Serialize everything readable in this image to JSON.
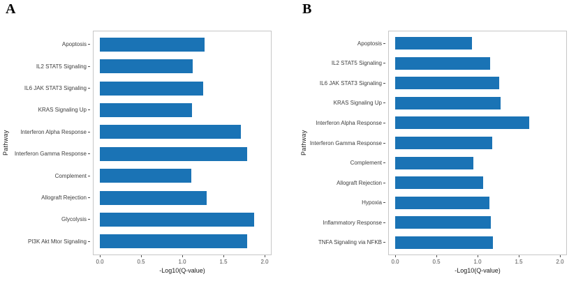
{
  "figure_title": "",
  "colors": {
    "bar": "#1a73b5",
    "panel_border": "#c6c6c6",
    "tick_text": "#4d4d4d",
    "category_text": "#3d3d3d",
    "axis_title_text": "#1a1a1a",
    "background": "#ffffff"
  },
  "chart_data": [
    {
      "type": "bar",
      "panel_label": "A",
      "orientation": "horizontal",
      "title": "",
      "xlabel": "-Log10(Q-value)",
      "ylabel": "Pathway",
      "xlim": [
        0,
        2.0
      ],
      "x_ticks": [
        0.0,
        0.5,
        1.0,
        1.5,
        2.0
      ],
      "x_tick_labels": [
        "0.0",
        "0.5",
        "1.0",
        "1.5",
        "2.0"
      ],
      "grid": false,
      "legend": "none",
      "categories": [
        "Apoptosis",
        "IL2 STAT5 Signaling",
        "IL6 JAK STAT3 Signaling",
        "KRAS Signaling Up",
        "Interferon Alpha Response",
        "Interferon Gamma Response",
        "Complement",
        "Allograft Rejection",
        "Glycolysis",
        "PI3K Akt Mtor Signaling"
      ],
      "values": [
        1.27,
        1.13,
        1.25,
        1.12,
        1.71,
        1.79,
        1.11,
        1.3,
        1.87,
        1.79
      ]
    },
    {
      "type": "bar",
      "panel_label": "B",
      "orientation": "horizontal",
      "title": "",
      "xlabel": "-Log10(Q-value)",
      "ylabel": "Pathway",
      "xlim": [
        0,
        2.0
      ],
      "x_ticks": [
        0.0,
        0.5,
        1.0,
        1.5,
        2.0
      ],
      "x_tick_labels": [
        "0.0",
        "0.5",
        "1.0",
        "1.5",
        "2.0"
      ],
      "grid": false,
      "legend": "none",
      "categories": [
        "Apoptosis",
        "IL2 STAT5 Signaling",
        "IL6 JAK STAT3 Signaling",
        "KRAS Signaling Up",
        "Interferon Alpha Response",
        "Interferon Gamma Response",
        "Complement",
        "Allograft Rejection",
        "Hypoxia",
        "Inflammatory Response",
        "TNFA Signaling via NFKB"
      ],
      "values": [
        0.93,
        1.15,
        1.26,
        1.28,
        1.63,
        1.18,
        0.95,
        1.07,
        1.14,
        1.16,
        1.19
      ]
    }
  ]
}
